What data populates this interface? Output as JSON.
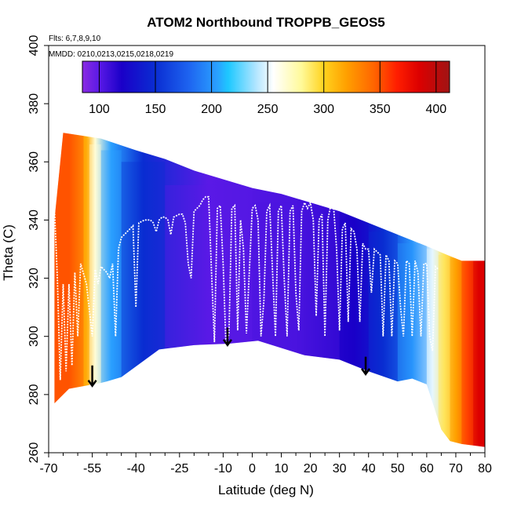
{
  "chart_data": {
    "type": "heatmap",
    "title": "ATOM2 Northbound TROPPB_GEOS5",
    "flights_note": "Flts: 6,7,8,9,10",
    "dates_note": "MMDD: 0210,0213,0215,0218,0219",
    "xlabel": "Latitude (deg N)",
    "ylabel": "Theta (C)",
    "xlim": [
      -70,
      80
    ],
    "ylim": [
      260,
      400
    ],
    "x_ticks": [
      -70,
      -55,
      -40,
      -25,
      -10,
      0,
      10,
      20,
      30,
      40,
      50,
      60,
      70,
      80
    ],
    "x_tick_labels": [
      "-70",
      "-55",
      "-40",
      "-25",
      "-10",
      "0",
      "10",
      "20",
      "30",
      "40",
      "50",
      "60",
      "70",
      "80"
    ],
    "y_ticks": [
      260,
      280,
      300,
      320,
      340,
      360,
      380,
      400
    ],
    "y_tick_labels": [
      "260",
      "280",
      "300",
      "320",
      "340",
      "360",
      "380",
      "400"
    ],
    "colorbar": {
      "range": [
        85,
        412
      ],
      "ticks": [
        100,
        150,
        200,
        250,
        300,
        350,
        400
      ],
      "tick_labels": [
        "100",
        "150",
        "200",
        "250",
        "300",
        "350",
        "400"
      ],
      "stops": [
        {
          "value": 85,
          "color": "#8a2be2"
        },
        {
          "value": 100,
          "color": "#5a19e6"
        },
        {
          "value": 120,
          "color": "#1a00c8"
        },
        {
          "value": 150,
          "color": "#0a2dd2"
        },
        {
          "value": 180,
          "color": "#1e64f0"
        },
        {
          "value": 205,
          "color": "#2aa0ff"
        },
        {
          "value": 215,
          "color": "#1ec8ff"
        },
        {
          "value": 240,
          "color": "#b4e6ff"
        },
        {
          "value": 255,
          "color": "#ffffff"
        },
        {
          "value": 280,
          "color": "#fffa9a"
        },
        {
          "value": 300,
          "color": "#ffd21e"
        },
        {
          "value": 320,
          "color": "#ffa000"
        },
        {
          "value": 345,
          "color": "#ff6400"
        },
        {
          "value": 365,
          "color": "#ff1e00"
        },
        {
          "value": 385,
          "color": "#dc0000"
        },
        {
          "value": 412,
          "color": "#a01414"
        }
      ]
    },
    "lower_boundary": [
      [
        -68,
        277
      ],
      [
        -63,
        282
      ],
      [
        -52,
        284
      ],
      [
        -50,
        284.5
      ],
      [
        -45,
        286
      ],
      [
        -32,
        295.5
      ],
      [
        -20,
        297
      ],
      [
        -8,
        297.5
      ],
      [
        2,
        298.5
      ],
      [
        18,
        293.5
      ],
      [
        30,
        292
      ],
      [
        40,
        288
      ],
      [
        50,
        284.5
      ],
      [
        55,
        285.5
      ],
      [
        60,
        283.5
      ],
      [
        65,
        268
      ],
      [
        68,
        264
      ],
      [
        72,
        263
      ],
      [
        80,
        262
      ]
    ],
    "upper_boundary": [
      [
        -68,
        340
      ],
      [
        -65,
        370
      ],
      [
        -52,
        368
      ],
      [
        -40,
        364
      ],
      [
        -30,
        361
      ],
      [
        -20,
        357
      ],
      [
        -10,
        354
      ],
      [
        0,
        351
      ],
      [
        10,
        349
      ],
      [
        20,
        346
      ],
      [
        30,
        343
      ],
      [
        40,
        339
      ],
      [
        50,
        335
      ],
      [
        60,
        331
      ],
      [
        67,
        328
      ],
      [
        72,
        326
      ],
      [
        80,
        326
      ]
    ],
    "regions": [
      {
        "lat": [
          -68,
          -58
        ],
        "theta": [
          277,
          370
        ],
        "value": 350
      },
      {
        "lat": [
          -58,
          -56
        ],
        "theta": [
          282,
          368
        ],
        "value": 315
      },
      {
        "lat": [
          -56,
          -52
        ],
        "theta": [
          283,
          366
        ],
        "value": 265
      },
      {
        "lat": [
          -52,
          -45
        ],
        "theta": [
          284,
          364
        ],
        "value": 205
      },
      {
        "lat": [
          -45,
          -30
        ],
        "theta": [
          286,
          360
        ],
        "value": 150
      },
      {
        "lat": [
          -30,
          0
        ],
        "theta": [
          296,
          352
        ],
        "value": 100
      },
      {
        "lat": [
          0,
          30
        ],
        "theta": [
          292,
          346
        ],
        "value": 105
      },
      {
        "lat": [
          30,
          40
        ],
        "theta": [
          288,
          340
        ],
        "value": 120
      },
      {
        "lat": [
          40,
          50
        ],
        "theta": [
          284,
          336
        ],
        "value": 150
      },
      {
        "lat": [
          50,
          60
        ],
        "theta": [
          283,
          332
        ],
        "value": 200
      },
      {
        "lat": [
          60,
          64
        ],
        "theta": [
          270,
          330
        ],
        "value": 250
      },
      {
        "lat": [
          64,
          68
        ],
        "theta": [
          265,
          328
        ],
        "value": 290
      },
      {
        "lat": [
          68,
          72
        ],
        "theta": [
          263,
          327
        ],
        "value": 320
      },
      {
        "lat": [
          72,
          76
        ],
        "theta": [
          262,
          326
        ],
        "value": 355
      },
      {
        "lat": [
          76,
          80
        ],
        "theta": [
          262,
          326
        ],
        "value": 385
      }
    ],
    "series": [
      {
        "type": "tropopause_trace",
        "color": "#ffffff",
        "points": [
          [
            -68,
            344
          ],
          [
            -67,
            320
          ],
          [
            -66,
            285
          ],
          [
            -65,
            318
          ],
          [
            -64,
            288
          ],
          [
            -63,
            318
          ],
          [
            -62,
            290
          ],
          [
            -61,
            322
          ],
          [
            -60,
            300
          ],
          [
            -59,
            325
          ],
          [
            -57,
            318
          ],
          [
            -55,
            300
          ],
          [
            -54,
            323
          ],
          [
            -53,
            318
          ],
          [
            -52,
            324
          ],
          [
            -50,
            322
          ],
          [
            -49,
            320
          ],
          [
            -48,
            325
          ],
          [
            -47,
            300
          ],
          [
            -46,
            330
          ],
          [
            -45,
            334
          ],
          [
            -44,
            335
          ],
          [
            -43,
            336
          ],
          [
            -41,
            338
          ],
          [
            -40,
            310
          ],
          [
            -39,
            339
          ],
          [
            -37,
            340
          ],
          [
            -35,
            340
          ],
          [
            -34,
            339
          ],
          [
            -33,
            336
          ],
          [
            -32,
            340
          ],
          [
            -31,
            341
          ],
          [
            -30,
            341
          ],
          [
            -29,
            340
          ],
          [
            -28,
            335
          ],
          [
            -27,
            341
          ],
          [
            -25,
            342
          ],
          [
            -24,
            342
          ],
          [
            -23,
            339
          ],
          [
            -22,
            325
          ],
          [
            -21,
            320
          ],
          [
            -20,
            343
          ],
          [
            -18,
            345
          ],
          [
            -17,
            347
          ],
          [
            -16,
            348
          ],
          [
            -15,
            348
          ],
          [
            -14,
            322
          ],
          [
            -13,
            298
          ],
          [
            -12,
            344
          ],
          [
            -11,
            345
          ],
          [
            -10,
            325
          ],
          [
            -9,
            296
          ],
          [
            -8,
            301
          ],
          [
            -7,
            344
          ],
          [
            -6,
            345
          ],
          [
            -5,
            302
          ],
          [
            -4,
            340
          ],
          [
            -3,
            330
          ],
          [
            -2,
            301
          ],
          [
            0,
            344
          ],
          [
            1,
            345
          ],
          [
            2,
            340
          ],
          [
            3,
            300
          ],
          [
            4,
            312
          ],
          [
            5,
            343
          ],
          [
            6,
            345
          ],
          [
            7,
            322
          ],
          [
            8,
            300
          ],
          [
            9,
            343
          ],
          [
            10,
            345
          ],
          [
            11,
            320
          ],
          [
            12,
            300
          ],
          [
            13,
            343
          ],
          [
            14,
            345
          ],
          [
            15,
            315
          ],
          [
            16,
            302
          ],
          [
            17,
            343
          ],
          [
            18,
            346
          ],
          [
            19,
            344
          ],
          [
            20,
            346
          ],
          [
            21,
            340
          ],
          [
            22,
            307
          ],
          [
            23,
            340
          ],
          [
            24,
            342
          ],
          [
            25,
            300
          ],
          [
            26,
            340
          ],
          [
            27,
            345
          ],
          [
            28,
            344
          ],
          [
            29,
            330
          ],
          [
            30,
            302
          ],
          [
            31,
            337
          ],
          [
            32,
            339
          ],
          [
            33,
            305
          ],
          [
            34,
            337
          ],
          [
            35,
            336
          ],
          [
            36,
            330
          ],
          [
            37,
            305
          ],
          [
            38,
            332
          ],
          [
            39,
            330
          ],
          [
            40,
            330
          ],
          [
            41,
            315
          ],
          [
            42,
            330
          ],
          [
            44,
            328
          ],
          [
            45,
            300
          ],
          [
            46,
            328
          ],
          [
            47,
            326
          ],
          [
            48,
            300
          ],
          [
            49,
            326
          ],
          [
            50,
            325
          ],
          [
            51,
            310
          ],
          [
            52,
            300
          ],
          [
            53,
            326
          ],
          [
            54,
            325
          ],
          [
            55,
            300
          ],
          [
            56,
            326
          ],
          [
            57,
            322
          ],
          [
            58,
            300
          ],
          [
            59,
            325
          ],
          [
            60,
            325
          ],
          [
            61,
            300
          ],
          [
            62,
            295
          ],
          [
            63,
            324
          ],
          [
            64,
            323
          ]
        ]
      }
    ],
    "annotations": [
      {
        "type": "arrow",
        "lat": -55,
        "theta_from": 290,
        "theta_to": 283,
        "color": "#000000"
      },
      {
        "type": "arrow",
        "lat": -8.5,
        "theta_from": 303,
        "theta_to": 297,
        "color": "#000000"
      },
      {
        "type": "arrow",
        "lat": 39,
        "theta_from": 293,
        "theta_to": 287,
        "color": "#000000"
      }
    ]
  }
}
